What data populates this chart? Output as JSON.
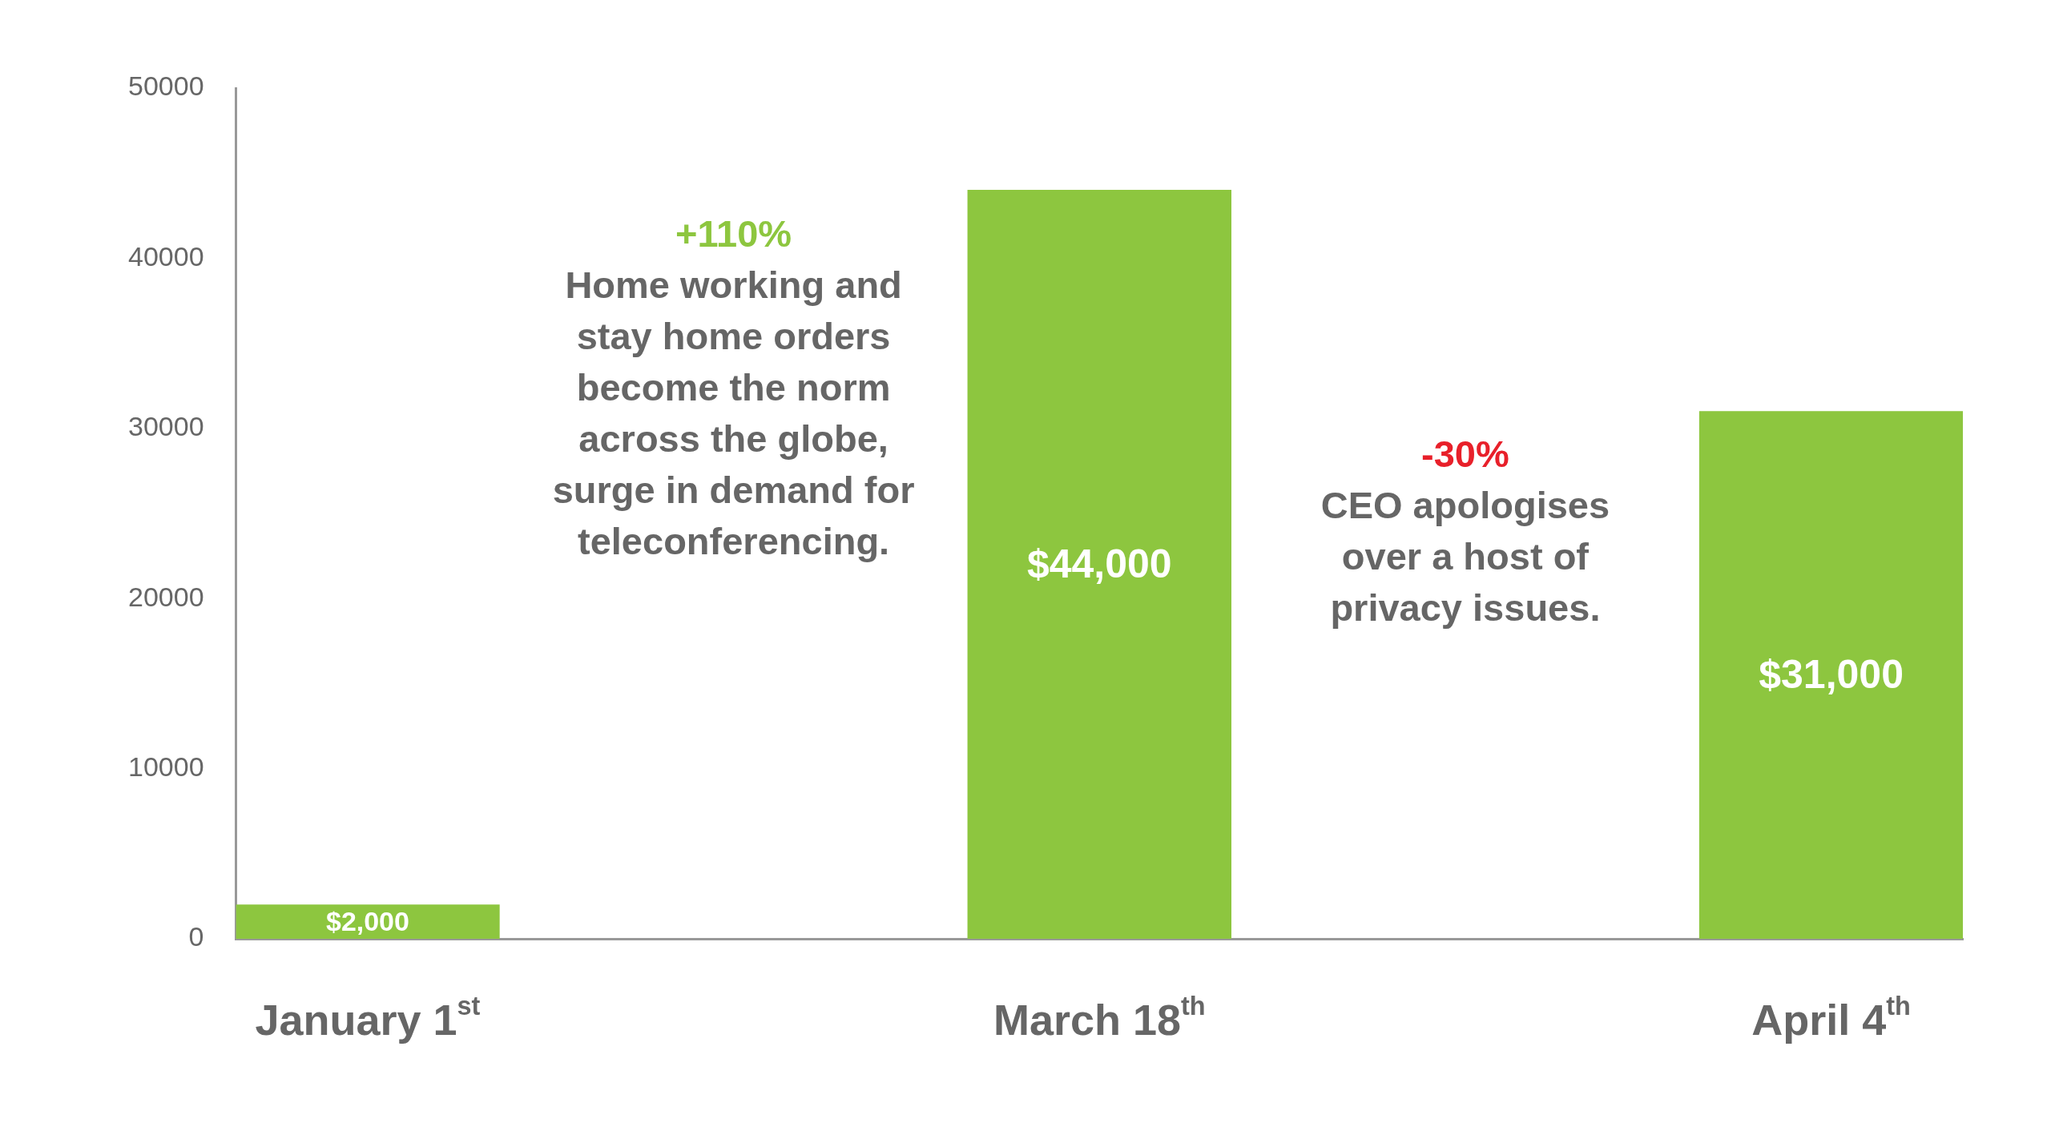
{
  "chart_data": {
    "type": "bar",
    "categories": [
      "January 1$^{st}$",
      "March 18$^{th}$",
      "April 4$^{th}$"
    ],
    "values": [
      2000,
      44000,
      31000
    ],
    "value_labels": [
      "$2,000",
      "$44,000",
      "$31,000"
    ],
    "color": "#8dc63f",
    "ylim": [
      0,
      50000
    ],
    "yticks": [
      0,
      10000,
      20000,
      30000,
      40000,
      50000
    ],
    "grid": false,
    "legend": false,
    "annotations": [
      "+110%",
      "Home working and stay home orders become the norm across the globe, surge in demand for teleconferencing.",
      "-30%",
      "CEO apologises over a host of privacy issues."
    ]
  }
}
